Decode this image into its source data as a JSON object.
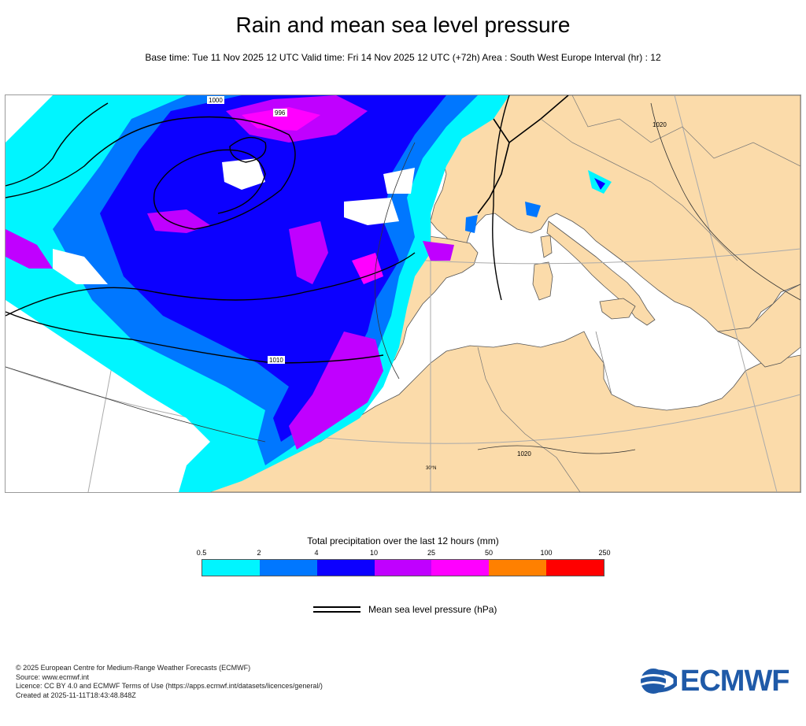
{
  "header": {
    "title": "Rain and mean sea level pressure",
    "subtitle": "Base time: Tue 11 Nov 2025 12 UTC Valid time: Fri 14 Nov 2025 12 UTC (+72h) Area : South West Europe Interval (hr) : 12"
  },
  "map": {
    "land_color": "#fbdbaa",
    "sea_color": "#ffffff",
    "isobar_labels": [
      "1000",
      "996",
      "1010",
      "1020",
      "1020"
    ],
    "graticule_label": "30°N"
  },
  "legend": {
    "title": "Total precipitation over the last 12 hours (mm)",
    "ticks": [
      "0.5",
      "2",
      "4",
      "10",
      "25",
      "50",
      "100",
      "250"
    ],
    "colors": [
      "#00f5ff",
      "#0077ff",
      "#0c00ff",
      "#c000ff",
      "#ff00ff",
      "#ff8000",
      "#ff0000"
    ],
    "mslp_label": "Mean sea level pressure (hPa)"
  },
  "footer": {
    "line1": "© 2025 European Centre for Medium-Range Weather Forecasts (ECMWF)",
    "line2": "Source: www.ecmwf.int",
    "line3": "Licence: CC BY 4.0 and ECMWF Terms of Use (https://apps.ecmwf.int/datasets/licences/general/)",
    "line4": "Created at 2025-11-11T18:43:48.848Z"
  },
  "logo": {
    "text": "ECMWF",
    "color": "#1f5aa8"
  }
}
